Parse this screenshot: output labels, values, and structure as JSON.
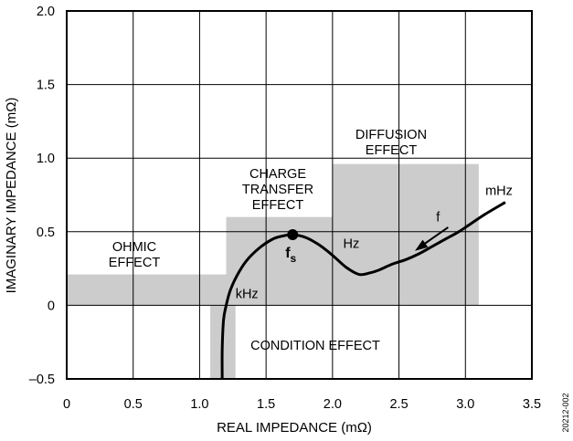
{
  "chart_data": {
    "type": "line",
    "xlabel": "REAL IMPEDANCE (mΩ)",
    "ylabel": "IMAGINARY IMPEDANCE (mΩ)",
    "xlim": [
      0,
      3.5
    ],
    "ylim": [
      -0.5,
      2.0
    ],
    "xticks": [
      0,
      0.5,
      1.0,
      1.5,
      2.0,
      2.5,
      3.0,
      3.5
    ],
    "yticks": [
      -0.5,
      0,
      0.5,
      1.0,
      1.5,
      2.0
    ],
    "xtick_labels": [
      "0",
      "0.5",
      "1.0",
      "1.5",
      "2.0",
      "2.5",
      "3.0",
      "3.5"
    ],
    "ytick_labels": [
      "–0.5",
      "0",
      "0.5",
      "1.0",
      "1.5",
      "2.0"
    ],
    "grid": true,
    "regions": [
      {
        "name": "OHMIC EFFECT",
        "lines": [
          "OHMIC",
          "EFFECT"
        ],
        "x": [
          0,
          1.2
        ],
        "y": [
          0,
          0.21
        ]
      },
      {
        "name": "CHARGE TRANSFER EFFECT",
        "lines": [
          "CHARGE",
          "TRANSFER",
          "EFFECT"
        ],
        "x": [
          1.2,
          2.0
        ],
        "y": [
          0,
          0.6
        ]
      },
      {
        "name": "DIFFUSION EFFECT",
        "lines": [
          "DIFFUSION",
          "EFFECT"
        ],
        "x": [
          2.0,
          3.1
        ],
        "y": [
          0,
          0.96
        ]
      },
      {
        "name": "CONDITION EFFECT",
        "lines": [
          "CONDITION EFFECT"
        ],
        "x": [
          1.08,
          1.27
        ],
        "y": [
          -0.5,
          0
        ]
      }
    ],
    "series": [
      {
        "x": [
          1.17,
          1.17,
          1.18,
          1.2,
          1.23,
          1.28,
          1.35,
          1.45,
          1.55,
          1.62,
          1.7,
          1.8,
          1.9,
          2.0,
          2.1,
          2.2,
          2.28,
          2.35,
          2.45,
          2.55,
          2.65,
          2.75,
          2.85,
          2.95,
          3.05,
          3.15,
          3.3
        ],
        "y": [
          -0.5,
          -0.3,
          -0.1,
          0.0,
          0.1,
          0.2,
          0.3,
          0.39,
          0.45,
          0.47,
          0.48,
          0.46,
          0.41,
          0.34,
          0.26,
          0.21,
          0.22,
          0.24,
          0.28,
          0.31,
          0.35,
          0.4,
          0.45,
          0.5,
          0.56,
          0.62,
          0.7
        ]
      }
    ],
    "marker": {
      "label_main": "f",
      "label_sub": "s",
      "x": 1.7,
      "y": 0.48
    },
    "annotations": [
      {
        "text": "kHz",
        "x": 1.27,
        "y": 0.05
      },
      {
        "text": "Hz",
        "x": 2.08,
        "y": 0.39
      },
      {
        "text": "mHz",
        "x": 3.15,
        "y": 0.75
      },
      {
        "text": "f",
        "x": 2.78,
        "y": 0.57
      }
    ],
    "arrow": {
      "from": [
        2.87,
        0.53
      ],
      "to": [
        2.62,
        0.37
      ]
    },
    "side_note": "20212-002"
  }
}
